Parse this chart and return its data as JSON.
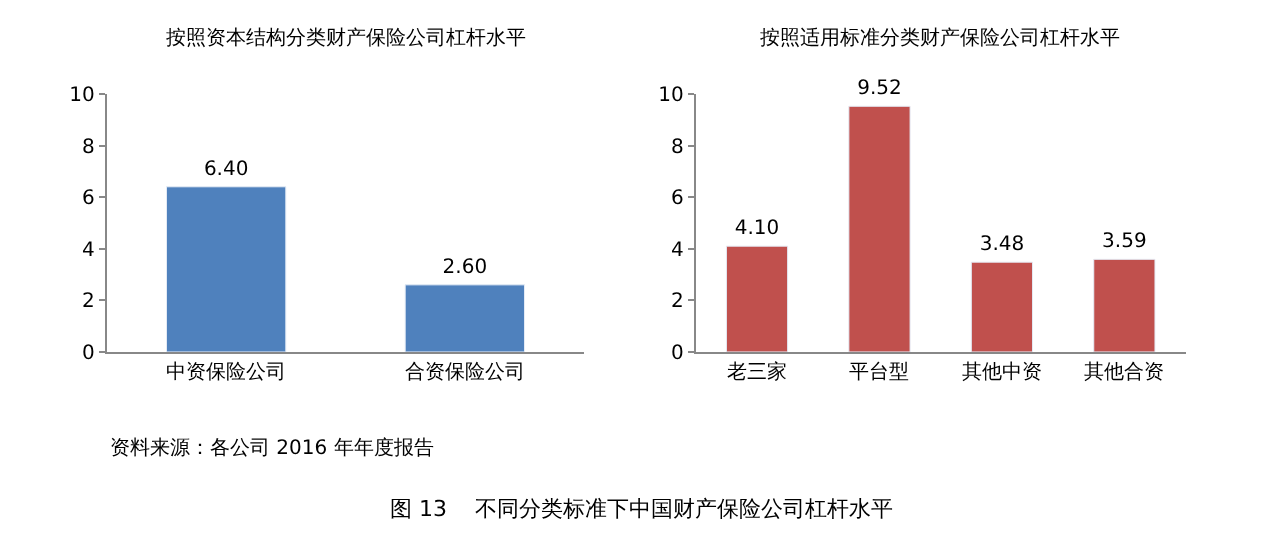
{
  "chart_data": [
    {
      "type": "bar",
      "title": "按照资本结构分类财产保险公司杠杆水平",
      "categories": [
        "中资保险公司",
        "合资保险公司"
      ],
      "values": [
        6.4,
        2.6
      ],
      "value_labels": [
        "6.40",
        "2.60"
      ],
      "color": "#4f81bd",
      "ylim": [
        0,
        10
      ],
      "yticks": [
        0,
        2,
        4,
        6,
        8,
        10
      ],
      "annotations": [
        "资料来源：各公司 2016 年年度报告",
        "图 13    不同分类标准下中国财产保险公司杠杆水平"
      ]
    },
    {
      "type": "bar",
      "title": "按照适用标准分类财产保险公司杠杆水平",
      "categories": [
        "老三家",
        "平台型",
        "其他中资",
        "其他合资"
      ],
      "values": [
        4.1,
        9.52,
        3.48,
        3.59
      ],
      "value_labels": [
        "4.10",
        "9.52",
        "3.48",
        "3.59"
      ],
      "color": "#c0504d",
      "ylim": [
        0,
        10
      ],
      "yticks": [
        0,
        2,
        4,
        6,
        8,
        10
      ]
    }
  ]
}
